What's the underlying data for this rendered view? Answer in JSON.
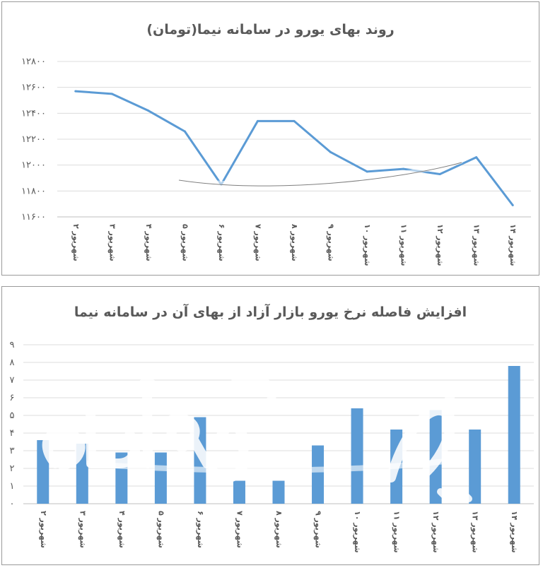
{
  "chart_data": [
    {
      "type": "line",
      "title": "روند بهای یورو در سامانه نیما(تومان)",
      "categories": [
        "۲ شهریور",
        "۳ شهریور",
        "۴ شهریور",
        "۵ شهریور",
        "۶ شهریور",
        "۷ شهریور",
        "۸ شهریور",
        "۹ شهریور",
        "۱۰ شهریور",
        "۱۱ شهریور",
        "۱۲ شهریور",
        "۱۳ شهریور",
        "۱۴ شهریور"
      ],
      "series": [
        {
          "values": [
            12570,
            12550,
            12420,
            12260,
            11850,
            12340,
            12340,
            12100,
            11950,
            11970,
            11930,
            12060,
            11690
          ]
        }
      ],
      "ylim": [
        11600,
        12800
      ],
      "yticks": [
        11600,
        11800,
        12000,
        12200,
        12400,
        12600,
        12800
      ],
      "ytick_labels": [
        "۱۱۶۰۰",
        "۱۱۸۰۰",
        "۱۲۰۰۰",
        "۱۲۲۰۰",
        "۱۲۴۰۰",
        "۱۲۶۰۰",
        "۱۲۸۰۰"
      ],
      "grid": true,
      "color": "#5b9bd5"
    },
    {
      "type": "bar",
      "title": "افزایش فاصله نرخ یورو بازار آزاد از بهای آن در سامانه نیما",
      "categories": [
        "۲ شهریور",
        "۳ شهریور",
        "۴ شهریور",
        "۵ شهریور",
        "۶ شهریور",
        "۷ شهریور",
        "۸ شهریور",
        "۹ شهریور",
        "۱۰ شهریور",
        "۱۱ شهریور",
        "۱۲ شهریور",
        "۱۳ شهریور",
        "۱۴ شهریور"
      ],
      "values": [
        3.6,
        3.4,
        2.9,
        2.9,
        4.9,
        1.3,
        1.3,
        3.3,
        5.4,
        4.2,
        5.3,
        4.2,
        7.8
      ],
      "ylim": [
        0,
        9
      ],
      "yticks": [
        0,
        1,
        2,
        3,
        4,
        5,
        6,
        7,
        8,
        9
      ],
      "ytick_labels": [
        "۰",
        "۱",
        "۲",
        "۳",
        "۴",
        "۵",
        "۶",
        "۷",
        "۸",
        "۹"
      ],
      "grid": true,
      "color": "#5b9bd5"
    }
  ],
  "watermark": {
    "text": "دنیای اقتصاد"
  }
}
